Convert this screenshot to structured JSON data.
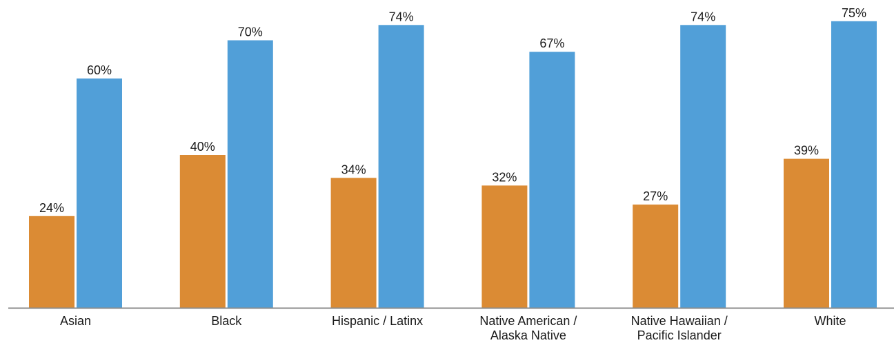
{
  "chart_data": {
    "type": "bar",
    "categories": [
      [
        "Asian"
      ],
      [
        "Black"
      ],
      [
        "Hispanic / Latinx"
      ],
      [
        "Native American /",
        "Alaska Native"
      ],
      [
        "Native Hawaiian /",
        "Pacific Islander"
      ],
      [
        "White"
      ]
    ],
    "series": [
      {
        "values": [
          24,
          40,
          34,
          32,
          27,
          39
        ],
        "color": "#DB8B34"
      },
      {
        "values": [
          60,
          70,
          74,
          67,
          74,
          75
        ],
        "color": "#519FD8"
      }
    ],
    "value_suffix": "%",
    "ylim": [
      0,
      75
    ],
    "axis_color": "#8c8c8c",
    "grid": false,
    "legend": "none",
    "title": "",
    "xlabel": "",
    "ylabel": ""
  }
}
